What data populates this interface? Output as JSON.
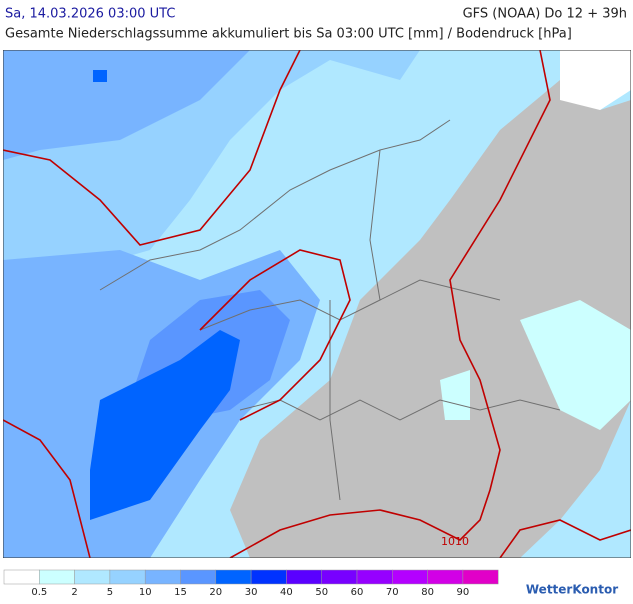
{
  "header": {
    "time": "Sa, 14.03.2026 03:00 UTC",
    "model": "GFS (NOAA) Do 12 + 39h",
    "title": "Gesamte Niederschlagssumme akkumuliert bis Sa 03:00 UTC [mm] / Bodendruck [hPa]"
  },
  "map": {
    "isobar_label": "1010"
  },
  "legend": {
    "colors": [
      "#ffffff",
      "#ccffff",
      "#b0e8ff",
      "#96d2ff",
      "#78b4ff",
      "#5a96ff",
      "#0064ff",
      "#0032ff",
      "#5a00ff",
      "#7800ff",
      "#9600ff",
      "#b400ff",
      "#d200e6",
      "#e100c8"
    ],
    "levels": [
      0.5,
      2,
      5,
      10,
      15,
      20,
      30,
      40,
      50,
      60,
      70,
      80,
      90
    ]
  },
  "logo": "WetterKontor"
}
